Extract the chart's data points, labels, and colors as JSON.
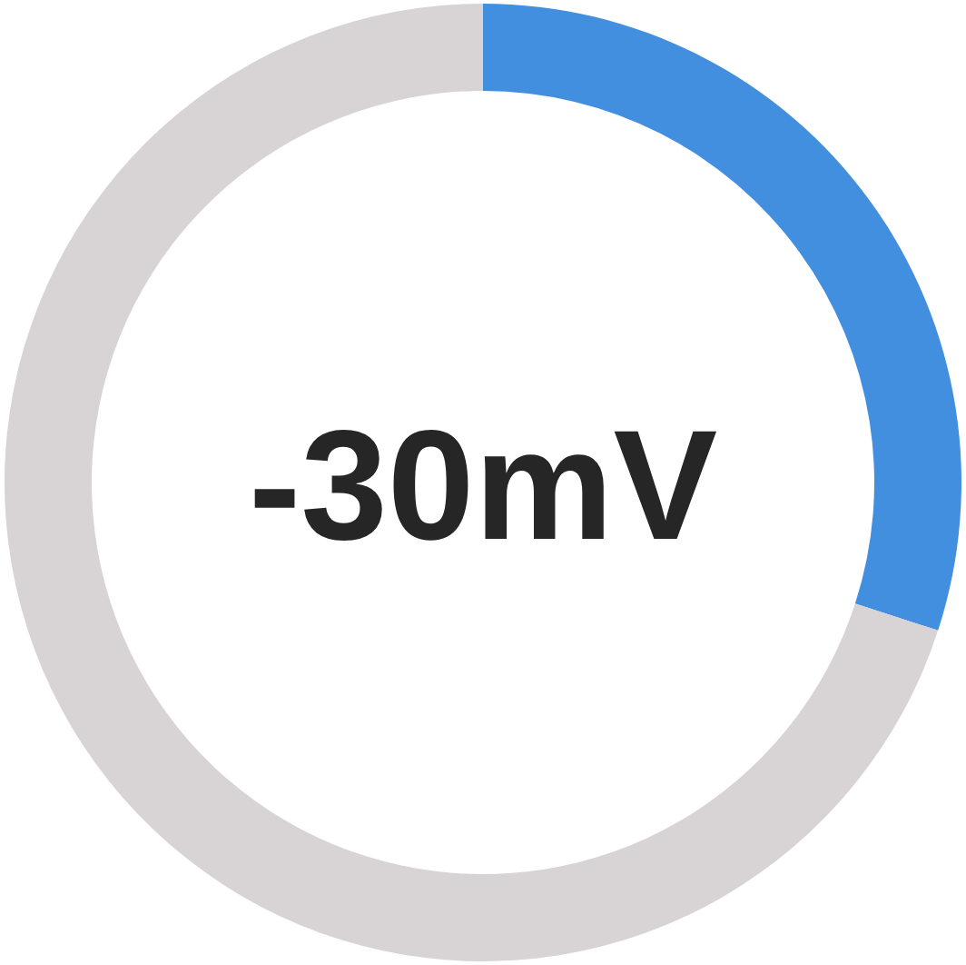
{
  "chart_data": {
    "type": "donut",
    "categories": [
      null,
      null
    ],
    "values": [
      30,
      70
    ],
    "colors": [
      "#418fde",
      "#d8d4d5"
    ],
    "annotations": [
      "-30mV"
    ]
  }
}
